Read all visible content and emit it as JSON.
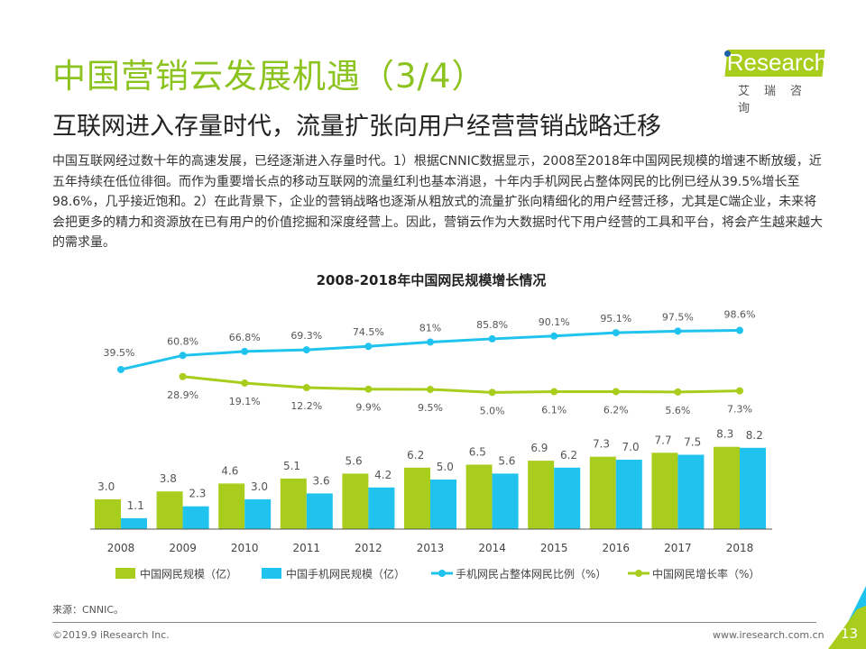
{
  "header": {
    "title": "中国营销云发展机遇（3/4）",
    "subtitle": "互联网进入存量时代，流量扩张向用户经营营销战略迁移",
    "logo_text": "iResearch",
    "logo_cn": "艾瑞咨询"
  },
  "body_text": "中国互联网经过数十年的高速发展，已经逐渐进入存量时代。1）根据CNNIC数据显示，2008至2018年中国网民规模的增速不断放缓，近五年持续在低位徘徊。而作为重要增长点的移动互联网的流量红利也基本消退，十年内手机网民占整体网民的比例已经从39.5%增长至98.6%，几乎接近饱和。2）在此背景下，企业的营销战略也逐渐从粗放式的流量扩张向精细化的用户经营迁移，尤其是C端企业，未来将会把更多的精力和资源放在已有用户的价值挖掘和深度经营上。因此，营销云作为大数据时代下用户经营的工具和平台，将会产生越来越大的需求量。",
  "chart_data": {
    "type": "bar+line",
    "title": "2008-2018年中国网民规模增长情况",
    "categories": [
      "2008",
      "2009",
      "2010",
      "2011",
      "2012",
      "2013",
      "2014",
      "2015",
      "2016",
      "2017",
      "2018"
    ],
    "series": [
      {
        "name": "中国网民规模（亿）",
        "type": "bar",
        "color": "#a9cd1c",
        "values": [
          3.0,
          3.8,
          4.6,
          5.1,
          5.6,
          6.2,
          6.5,
          6.9,
          7.3,
          7.7,
          8.3
        ],
        "labels": [
          "3.0",
          "3.8",
          "4.6",
          "5.1",
          "5.6",
          "6.2",
          "6.5",
          "6.9",
          "7.3",
          "7.7",
          "8.3"
        ]
      },
      {
        "name": "中国手机网民规模（亿）",
        "type": "bar",
        "color": "#1fc3ee",
        "values": [
          1.1,
          2.3,
          3.0,
          3.6,
          4.2,
          5.0,
          5.6,
          6.2,
          7.0,
          7.5,
          8.2
        ],
        "labels": [
          "1.1",
          "2.3",
          "3.0",
          "3.6",
          "4.2",
          "5.0",
          "5.6",
          "6.2",
          "7.0",
          "7.5",
          "8.2"
        ]
      },
      {
        "name": "手机网民占整体网民比例（%）",
        "type": "line",
        "color": "#1fc3ee",
        "values": [
          39.5,
          60.8,
          66.8,
          69.3,
          74.5,
          81,
          85.8,
          90.1,
          95.1,
          97.5,
          98.6
        ],
        "labels": [
          "39.5%",
          "60.8%",
          "66.8%",
          "69.3%",
          "74.5%",
          "81%",
          "85.8%",
          "90.1%",
          "95.1%",
          "97.5%",
          "98.6%"
        ]
      },
      {
        "name": "中国网民增长率（%）",
        "type": "line",
        "color": "#a9cd1c",
        "values": [
          null,
          28.9,
          19.1,
          12.2,
          9.9,
          9.5,
          5.0,
          6.1,
          6.2,
          5.6,
          7.3
        ],
        "labels": [
          "",
          "28.9%",
          "19.1%",
          "12.2%",
          "9.9%",
          "9.5%",
          "5.0%",
          "6.1%",
          "6.2%",
          "5.6%",
          "7.3%"
        ]
      }
    ],
    "legend_position": "bottom",
    "grid": false
  },
  "footer": {
    "source": "来源：CNNIC。",
    "copyright": "©2019.9 iResearch Inc.",
    "website": "www.iresearch.com.cn",
    "page_number": "13"
  }
}
